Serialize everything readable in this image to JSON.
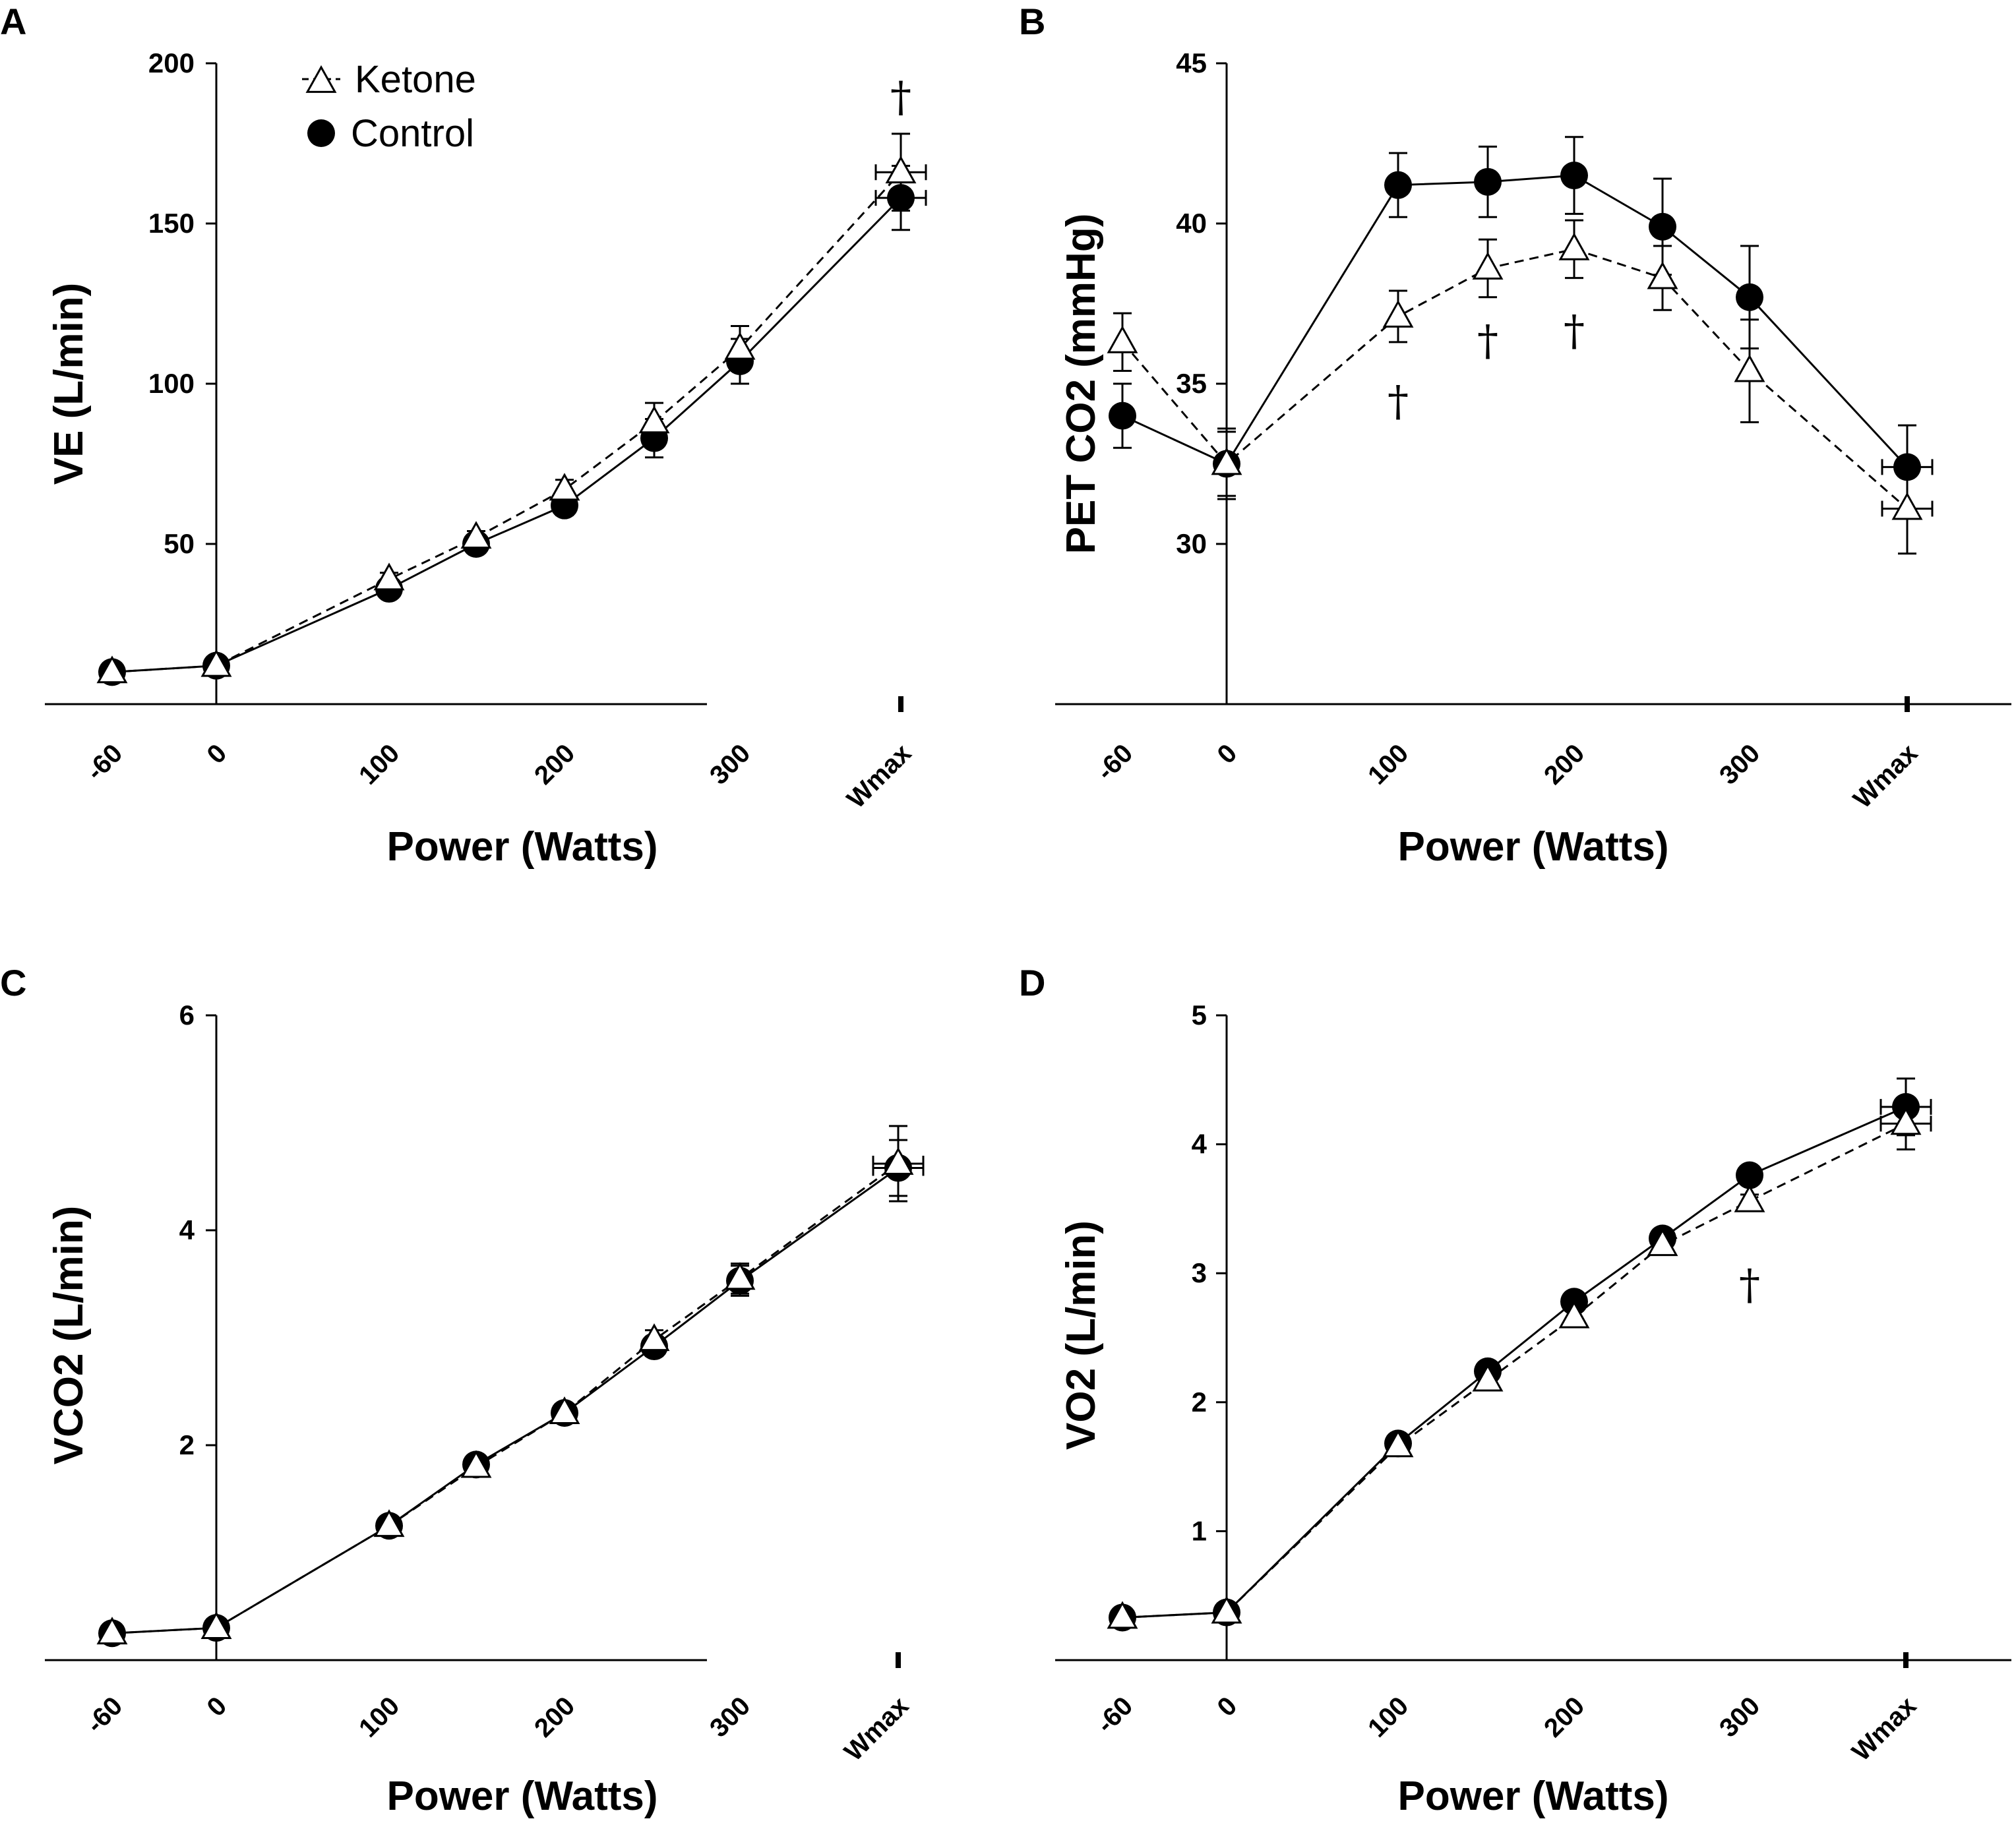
{
  "chart_data": [
    {
      "panel": "A",
      "type": "line",
      "xlabel": "Power (Watts)",
      "ylabel": "VE (L/min)",
      "categories": [
        "-60",
        "0",
        "100",
        "150",
        "200",
        "250",
        "300",
        "Wmax"
      ],
      "xticks": [
        "-60",
        "0",
        "100",
        "200",
        "300",
        "Wmax"
      ],
      "ylim": [
        0,
        200
      ],
      "yticks": [
        50,
        100,
        150,
        200
      ],
      "series": [
        {
          "name": "Ketone",
          "values": [
            10,
            12,
            39,
            52,
            67,
            88,
            111,
            166
          ],
          "err": [
            1,
            1,
            2,
            2,
            3,
            6,
            7,
            12
          ]
        },
        {
          "name": "Control",
          "values": [
            10,
            12,
            36,
            50,
            62,
            83,
            107,
            158
          ],
          "err": [
            1,
            1,
            2,
            2,
            3,
            6,
            7,
            10
          ]
        }
      ],
      "annotations": [
        {
          "text": "†",
          "x": "Wmax",
          "y": 185
        }
      ],
      "legend": {
        "position": "top-left",
        "entries": [
          "Ketone",
          "Control"
        ]
      }
    },
    {
      "panel": "B",
      "type": "line",
      "xlabel": "Power (Watts)",
      "ylabel": "PET CO2 (mmHg)",
      "categories": [
        "-60",
        "0",
        "100",
        "150",
        "200",
        "250",
        "300",
        "Wmax"
      ],
      "xticks": [
        "-60",
        "0",
        "100",
        "200",
        "300",
        "Wmax"
      ],
      "ylim": [
        25,
        45
      ],
      "yticks": [
        30,
        35,
        40,
        45
      ],
      "series": [
        {
          "name": "Ketone",
          "values": [
            36.3,
            32.5,
            37.1,
            38.6,
            39.2,
            38.3,
            35.4,
            31.1
          ],
          "err": [
            0.9,
            1.0,
            0.8,
            0.9,
            0.9,
            1.0,
            1.6,
            1.4
          ]
        },
        {
          "name": "Control",
          "values": [
            34.0,
            32.5,
            41.2,
            41.3,
            41.5,
            39.9,
            37.7,
            32.4
          ],
          "err": [
            1.0,
            1.1,
            1.0,
            1.1,
            1.2,
            1.5,
            1.6,
            1.3
          ]
        }
      ],
      "annotations": [
        {
          "text": "†",
          "x": "100",
          "y": 34.0
        },
        {
          "text": "†",
          "x": "150",
          "y": 35.9
        },
        {
          "text": "†",
          "x": "200",
          "y": 36.2
        }
      ]
    },
    {
      "panel": "C",
      "type": "line",
      "xlabel": "Power (Watts)",
      "ylabel": "VCO2 (L/min)",
      "categories": [
        "-60",
        "0",
        "100",
        "150",
        "200",
        "250",
        "300",
        "Wmax"
      ],
      "xticks": [
        "-60",
        "0",
        "100",
        "200",
        "300",
        "Wmax"
      ],
      "ylim": [
        0,
        6
      ],
      "yticks": [
        2,
        4,
        6
      ],
      "series": [
        {
          "name": "Ketone",
          "values": [
            0.25,
            0.3,
            1.25,
            1.8,
            2.3,
            2.98,
            3.55,
            4.62
          ],
          "err": [
            0.03,
            0.03,
            0.05,
            0.06,
            0.07,
            0.09,
            0.14,
            0.35
          ]
        },
        {
          "name": "Control",
          "values": [
            0.25,
            0.3,
            1.25,
            1.82,
            2.3,
            2.92,
            3.53,
            4.58
          ],
          "err": [
            0.03,
            0.03,
            0.05,
            0.06,
            0.07,
            0.09,
            0.14,
            0.26
          ]
        }
      ]
    },
    {
      "panel": "D",
      "type": "line",
      "xlabel": "Power (Watts)",
      "ylabel": "VO2 (L/min)",
      "categories": [
        "-60",
        "0",
        "100",
        "150",
        "200",
        "250",
        "300",
        "Wmax"
      ],
      "xticks": [
        "-60",
        "0",
        "100",
        "200",
        "300",
        "Wmax"
      ],
      "ylim": [
        0,
        5
      ],
      "yticks": [
        1,
        2,
        3,
        4,
        5
      ],
      "series": [
        {
          "name": "Ketone",
          "values": [
            0.33,
            0.37,
            1.66,
            2.17,
            2.66,
            3.22,
            3.56,
            4.16
          ],
          "err": [
            0.02,
            0.02,
            0.03,
            0.04,
            0.05,
            0.05,
            0.05,
            0.2
          ]
        },
        {
          "name": "Control",
          "values": [
            0.33,
            0.37,
            1.68,
            2.24,
            2.78,
            3.27,
            3.76,
            4.29
          ],
          "err": [
            0.02,
            0.02,
            0.03,
            0.04,
            0.05,
            0.05,
            0.05,
            0.22
          ]
        }
      ],
      "annotations": [
        {
          "text": "†",
          "x": "300",
          "y": 2.8
        }
      ]
    }
  ]
}
